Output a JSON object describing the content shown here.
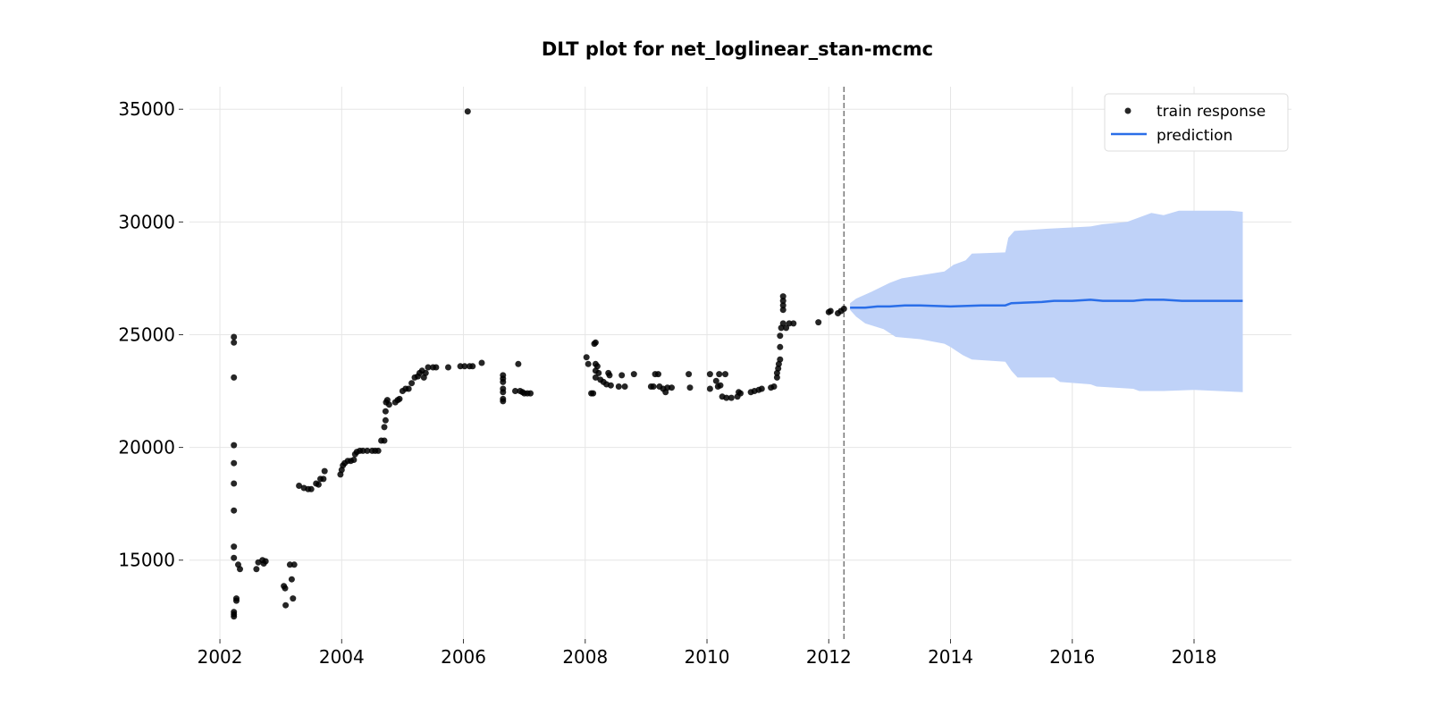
{
  "chart_data": {
    "type": "scatter",
    "title": "DLT plot for net_loglinear_stan-mcmc",
    "xlabel": "",
    "ylabel": "",
    "xlim": [
      2001.5,
      2019.6
    ],
    "ylim": [
      11500,
      36000
    ],
    "x_ticks": [
      "2002",
      "2004",
      "2006",
      "2008",
      "2010",
      "2012",
      "2014",
      "2016",
      "2018"
    ],
    "y_ticks": [
      "15000",
      "20000",
      "25000",
      "30000",
      "35000"
    ],
    "grid": true,
    "legend_position": "top-right",
    "colors": {
      "train": "#000000",
      "prediction": "#2a6ee8",
      "band": "#bfd2f8",
      "cutoff": "#777777"
    },
    "forecast_start": 2012.25,
    "series": [
      {
        "name": "train response",
        "kind": "scatter",
        "points": [
          [
            2002.23,
            24900
          ],
          [
            2002.23,
            24650
          ],
          [
            2002.23,
            23100
          ],
          [
            2002.23,
            20100
          ],
          [
            2002.23,
            19300
          ],
          [
            2002.23,
            18400
          ],
          [
            2002.23,
            17200
          ],
          [
            2002.23,
            15600
          ],
          [
            2002.23,
            15100
          ],
          [
            2002.23,
            12700
          ],
          [
            2002.23,
            12600
          ],
          [
            2002.23,
            12500
          ],
          [
            2002.27,
            13300
          ],
          [
            2002.27,
            13200
          ],
          [
            2002.3,
            14800
          ],
          [
            2002.33,
            14600
          ],
          [
            2002.6,
            14600
          ],
          [
            2002.63,
            14900
          ],
          [
            2002.7,
            15000
          ],
          [
            2002.72,
            14850
          ],
          [
            2002.75,
            14950
          ],
          [
            2003.05,
            13850
          ],
          [
            2003.07,
            13750
          ],
          [
            2003.08,
            13000
          ],
          [
            2003.15,
            14800
          ],
          [
            2003.18,
            14150
          ],
          [
            2003.2,
            13300
          ],
          [
            2003.22,
            14800
          ],
          [
            2003.3,
            18300
          ],
          [
            2003.38,
            18200
          ],
          [
            2003.45,
            18150
          ],
          [
            2003.5,
            18150
          ],
          [
            2003.58,
            18400
          ],
          [
            2003.62,
            18350
          ],
          [
            2003.65,
            18600
          ],
          [
            2003.7,
            18600
          ],
          [
            2003.72,
            18950
          ],
          [
            2003.98,
            18800
          ],
          [
            2004.0,
            19000
          ],
          [
            2004.02,
            19200
          ],
          [
            2004.05,
            19300
          ],
          [
            2004.1,
            19400
          ],
          [
            2004.15,
            19400
          ],
          [
            2004.2,
            19450
          ],
          [
            2004.22,
            19700
          ],
          [
            2004.25,
            19800
          ],
          [
            2004.3,
            19850
          ],
          [
            2004.35,
            19850
          ],
          [
            2004.42,
            19850
          ],
          [
            2004.5,
            19850
          ],
          [
            2004.55,
            19850
          ],
          [
            2004.6,
            19850
          ],
          [
            2004.65,
            20300
          ],
          [
            2004.7,
            20300
          ],
          [
            2004.7,
            20900
          ],
          [
            2004.72,
            21200
          ],
          [
            2004.72,
            21600
          ],
          [
            2004.73,
            22000
          ],
          [
            2004.75,
            22100
          ],
          [
            2004.78,
            21900
          ],
          [
            2004.88,
            22000
          ],
          [
            2004.92,
            22100
          ],
          [
            2004.95,
            22150
          ],
          [
            2005.0,
            22500
          ],
          [
            2005.05,
            22600
          ],
          [
            2005.1,
            22600
          ],
          [
            2005.15,
            22850
          ],
          [
            2005.2,
            23100
          ],
          [
            2005.25,
            23150
          ],
          [
            2005.28,
            23300
          ],
          [
            2005.32,
            23400
          ],
          [
            2005.35,
            23100
          ],
          [
            2005.38,
            23300
          ],
          [
            2005.42,
            23550
          ],
          [
            2005.5,
            23550
          ],
          [
            2005.55,
            23550
          ],
          [
            2005.75,
            23550
          ],
          [
            2005.95,
            23600
          ],
          [
            2006.02,
            23600
          ],
          [
            2006.07,
            34900
          ],
          [
            2006.1,
            23600
          ],
          [
            2006.15,
            23600
          ],
          [
            2006.3,
            23750
          ],
          [
            2006.65,
            23200
          ],
          [
            2006.65,
            23050
          ],
          [
            2006.65,
            22900
          ],
          [
            2006.65,
            22600
          ],
          [
            2006.65,
            22450
          ],
          [
            2006.65,
            22150
          ],
          [
            2006.65,
            22050
          ],
          [
            2006.85,
            22500
          ],
          [
            2006.9,
            23700
          ],
          [
            2006.93,
            22500
          ],
          [
            2006.97,
            22450
          ],
          [
            2007.0,
            22400
          ],
          [
            2007.05,
            22400
          ],
          [
            2007.1,
            22400
          ],
          [
            2008.02,
            24000
          ],
          [
            2008.05,
            23700
          ],
          [
            2008.1,
            22400
          ],
          [
            2008.13,
            22400
          ],
          [
            2008.15,
            24600
          ],
          [
            2008.17,
            24650
          ],
          [
            2008.17,
            23700
          ],
          [
            2008.17,
            23400
          ],
          [
            2008.17,
            23100
          ],
          [
            2008.2,
            23600
          ],
          [
            2008.22,
            23300
          ],
          [
            2008.25,
            23000
          ],
          [
            2008.3,
            22900
          ],
          [
            2008.35,
            22800
          ],
          [
            2008.38,
            23300
          ],
          [
            2008.4,
            23200
          ],
          [
            2008.42,
            22750
          ],
          [
            2008.55,
            22700
          ],
          [
            2008.6,
            23200
          ],
          [
            2008.65,
            22700
          ],
          [
            2008.8,
            23250
          ],
          [
            2009.08,
            22700
          ],
          [
            2009.12,
            22700
          ],
          [
            2009.15,
            23250
          ],
          [
            2009.2,
            23250
          ],
          [
            2009.22,
            22700
          ],
          [
            2009.28,
            22600
          ],
          [
            2009.32,
            22450
          ],
          [
            2009.35,
            22650
          ],
          [
            2009.42,
            22650
          ],
          [
            2009.7,
            23250
          ],
          [
            2009.72,
            22650
          ],
          [
            2010.05,
            23250
          ],
          [
            2010.05,
            22600
          ],
          [
            2010.15,
            22950
          ],
          [
            2010.18,
            22700
          ],
          [
            2010.2,
            23250
          ],
          [
            2010.22,
            22750
          ],
          [
            2010.25,
            22250
          ],
          [
            2010.3,
            23250
          ],
          [
            2010.32,
            22200
          ],
          [
            2010.4,
            22200
          ],
          [
            2010.5,
            22250
          ],
          [
            2010.52,
            22450
          ],
          [
            2010.55,
            22400
          ],
          [
            2010.72,
            22450
          ],
          [
            2010.78,
            22500
          ],
          [
            2010.85,
            22550
          ],
          [
            2010.9,
            22600
          ],
          [
            2011.05,
            22650
          ],
          [
            2011.1,
            22700
          ],
          [
            2011.15,
            23100
          ],
          [
            2011.15,
            23300
          ],
          [
            2011.17,
            23500
          ],
          [
            2011.18,
            23700
          ],
          [
            2011.2,
            23900
          ],
          [
            2011.2,
            24450
          ],
          [
            2011.2,
            24950
          ],
          [
            2011.22,
            25300
          ],
          [
            2011.25,
            25500
          ],
          [
            2011.25,
            26100
          ],
          [
            2011.25,
            26300
          ],
          [
            2011.25,
            26500
          ],
          [
            2011.25,
            26700
          ],
          [
            2011.3,
            25300
          ],
          [
            2011.35,
            25500
          ],
          [
            2011.42,
            25500
          ],
          [
            2011.83,
            25550
          ],
          [
            2012.0,
            26000
          ],
          [
            2012.03,
            26050
          ],
          [
            2012.15,
            25950
          ],
          [
            2012.2,
            26050
          ],
          [
            2012.25,
            26150
          ]
        ]
      },
      {
        "name": "prediction",
        "kind": "line",
        "points": [
          [
            2012.35,
            26200
          ],
          [
            2012.6,
            26200
          ],
          [
            2012.8,
            26250
          ],
          [
            2013.0,
            26250
          ],
          [
            2013.25,
            26300
          ],
          [
            2013.5,
            26300
          ],
          [
            2014.0,
            26250
          ],
          [
            2014.5,
            26300
          ],
          [
            2014.9,
            26300
          ],
          [
            2015.0,
            26400
          ],
          [
            2015.5,
            26450
          ],
          [
            2015.7,
            26500
          ],
          [
            2016.0,
            26500
          ],
          [
            2016.3,
            26550
          ],
          [
            2016.5,
            26500
          ],
          [
            2017.0,
            26500
          ],
          [
            2017.2,
            26550
          ],
          [
            2017.5,
            26550
          ],
          [
            2017.8,
            26500
          ],
          [
            2018.4,
            26500
          ],
          [
            2018.8,
            26500
          ]
        ],
        "lower": [
          [
            2012.35,
            26100
          ],
          [
            2012.45,
            25800
          ],
          [
            2012.6,
            25500
          ],
          [
            2012.9,
            25250
          ],
          [
            2013.1,
            24900
          ],
          [
            2013.5,
            24800
          ],
          [
            2013.9,
            24600
          ],
          [
            2014.0,
            24450
          ],
          [
            2014.2,
            24100
          ],
          [
            2014.35,
            23900
          ],
          [
            2014.9,
            23800
          ],
          [
            2015.0,
            23400
          ],
          [
            2015.1,
            23100
          ],
          [
            2015.7,
            23100
          ],
          [
            2015.8,
            22900
          ],
          [
            2016.3,
            22800
          ],
          [
            2016.4,
            22700
          ],
          [
            2017.0,
            22600
          ],
          [
            2017.1,
            22500
          ],
          [
            2017.5,
            22500
          ],
          [
            2018.0,
            22550
          ],
          [
            2018.8,
            22450
          ]
        ],
        "upper": [
          [
            2012.35,
            26400
          ],
          [
            2012.45,
            26600
          ],
          [
            2012.7,
            26900
          ],
          [
            2013.0,
            27300
          ],
          [
            2013.2,
            27500
          ],
          [
            2013.9,
            27800
          ],
          [
            2014.05,
            28100
          ],
          [
            2014.25,
            28300
          ],
          [
            2014.35,
            28600
          ],
          [
            2014.9,
            28650
          ],
          [
            2014.95,
            29300
          ],
          [
            2015.05,
            29600
          ],
          [
            2015.6,
            29700
          ],
          [
            2016.3,
            29800
          ],
          [
            2016.5,
            29900
          ],
          [
            2016.9,
            30000
          ],
          [
            2017.1,
            30200
          ],
          [
            2017.3,
            30400
          ],
          [
            2017.5,
            30300
          ],
          [
            2017.75,
            30500
          ],
          [
            2018.6,
            30500
          ],
          [
            2018.8,
            30450
          ]
        ]
      }
    ]
  }
}
